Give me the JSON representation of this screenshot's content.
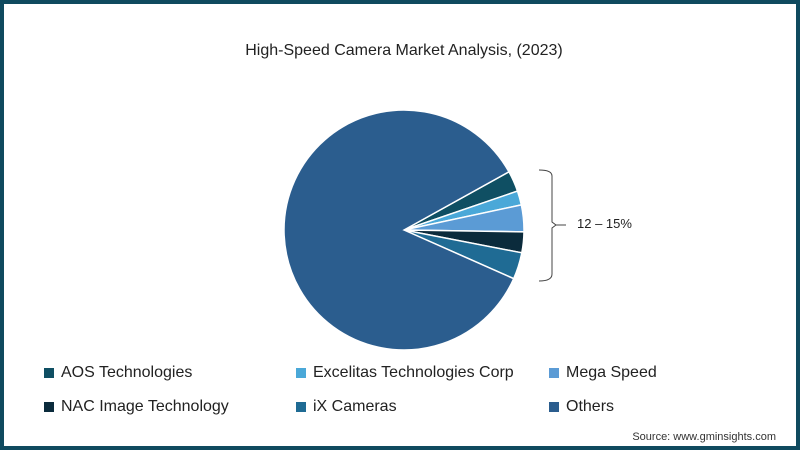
{
  "chart_data": {
    "type": "pie",
    "title": "High-Speed Camera Market Analysis, (2023)",
    "slices": [
      {
        "label": "AOS Technologies",
        "value": 2.8,
        "color": "#0f4f63"
      },
      {
        "label": "Excelitas Technologies Corp",
        "value": 1.9,
        "color": "#4aa8d8"
      },
      {
        "label": "Mega Speed",
        "value": 3.6,
        "color": "#5b9bd5"
      },
      {
        "label": "NAC Image Technology",
        "value": 2.8,
        "color": "#0b2b3c"
      },
      {
        "label": "iX Cameras",
        "value": 3.6,
        "color": "#1f6b94"
      },
      {
        "label": "Others",
        "value": 85.3,
        "color": "#2b5d8e"
      }
    ],
    "annotation": "12 – 15%",
    "legend_position": "bottom"
  },
  "title": "High-Speed Camera Market Analysis, (2023)",
  "annotation": "12 – 15%",
  "legend": [
    {
      "label": "AOS Technologies",
      "color": "#0f4f63"
    },
    {
      "label": "Excelitas Technologies Corp",
      "color": "#4aa8d8"
    },
    {
      "label": "Mega Speed",
      "color": "#5b9bd5"
    },
    {
      "label": "NAC Image Technology",
      "color": "#0b2b3c"
    },
    {
      "label": "iX Cameras",
      "color": "#1f6b94"
    },
    {
      "label": "Others",
      "color": "#2b5d8e"
    }
  ],
  "source": "Source: www.gminsights.com"
}
